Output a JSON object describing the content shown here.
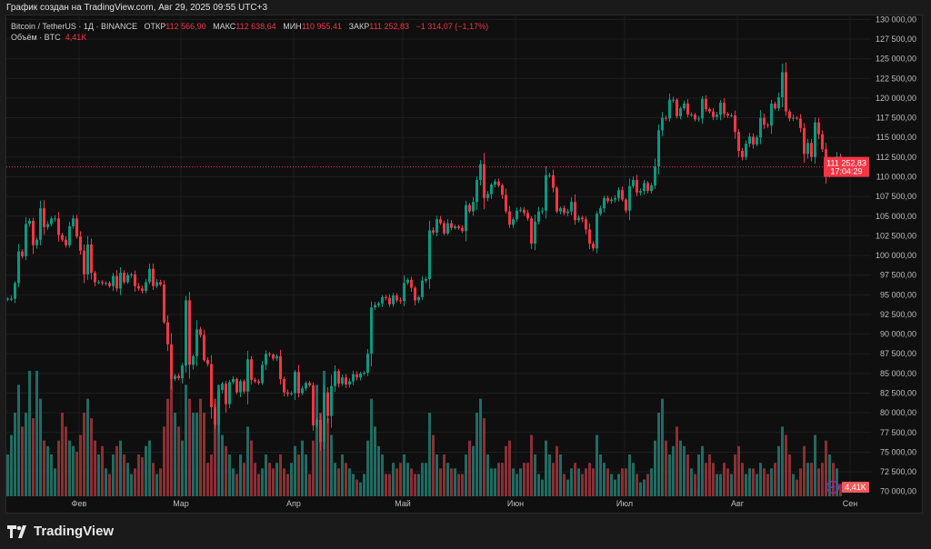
{
  "caption": "График создан на TradingView.com, Авг 29, 2025 09:55 UTC+3",
  "legend": {
    "symbol": "Bitcoin / TetherUS · 1Д · BINANCE",
    "open_label": "ОТКР",
    "open": "112 566,90",
    "high_label": "МАКС",
    "high": "112 638,64",
    "low_label": "МИН",
    "low": "110 955,41",
    "close_label": "ЗАКР",
    "close": "111 252,83",
    "change": "−1 314,07 (−1,17%)",
    "volume_label": "Объём · BTC",
    "volume": "4,41K"
  },
  "price_badge": {
    "price": "111 252,83",
    "countdown": "17:04:29"
  },
  "volume_badge": "4,41K",
  "footer": {
    "brand": "TradingView"
  },
  "colors": {
    "up": "#089981",
    "down": "#f23645",
    "up_vol": "#1f6b63",
    "down_vol": "#8c2f33"
  },
  "chart_data": {
    "type": "candlestick",
    "start_date": "2025-01-12",
    "interval": "1D",
    "ylim": [
      70000,
      130000
    ],
    "price_ticks": [
      "130 000,00",
      "127 500,00",
      "125 000,00",
      "122 500,00",
      "120 000,00",
      "117 500,00",
      "115 000,00",
      "112 500,00",
      "110 000,00",
      "107 500,00",
      "105 000,00",
      "102 500,00",
      "100 000,00",
      "97 500,00",
      "95 000,00",
      "92 500,00",
      "90 000,00",
      "87 500,00",
      "85 000,00",
      "82 500,00",
      "80 000,00",
      "77 500,00",
      "75 000,00",
      "72 500,00",
      "70 000,00"
    ],
    "price_tick_values": [
      130000,
      127500,
      125000,
      122500,
      120000,
      117500,
      115000,
      112500,
      110000,
      107500,
      105000,
      102500,
      100000,
      97500,
      95000,
      92500,
      90000,
      87500,
      85000,
      82500,
      80000,
      77500,
      75000,
      72500,
      70000
    ],
    "months": [
      {
        "label": "Фев",
        "day_index": 20
      },
      {
        "label": "Мар",
        "day_index": 48
      },
      {
        "label": "Апр",
        "day_index": 79
      },
      {
        "label": "Май",
        "day_index": 109
      },
      {
        "label": "Июн",
        "day_index": 140
      },
      {
        "label": "Июл",
        "day_index": 170
      },
      {
        "label": "Авг",
        "day_index": 201
      },
      {
        "label": "Сен",
        "day_index": 232
      }
    ],
    "first_open": 94500,
    "closes": [
      94500,
      94500,
      96500,
      100500,
      99900,
      104000,
      104400,
      101300,
      102000,
      106000,
      103600,
      104000,
      104700,
      104700,
      102600,
      102000,
      101300,
      103700,
      104700,
      102400,
      100600,
      97600,
      101400,
      97800,
      96600,
      96600,
      96500,
      96500,
      96100,
      97400,
      95800,
      97800,
      96600,
      97500,
      97600,
      96100,
      95800,
      95500,
      96600,
      98300,
      96100,
      96600,
      96300,
      91500,
      88700,
      84300,
      84700,
      84400,
      86000,
      94300,
      86100,
      87200,
      90600,
      89900,
      86700,
      86200,
      80700,
      78500,
      82900,
      83700,
      81100,
      83900,
      84300,
      82600,
      84000,
      82700,
      86800,
      84200,
      84000,
      83800,
      86100,
      87500,
      87400,
      86900,
      87200,
      84300,
      82600,
      82400,
      82500,
      85200,
      82500,
      83100,
      83800,
      83500,
      78400,
      79100,
      76300,
      82600,
      79600,
      83400,
      85300,
      83700,
      84500,
      83600,
      84000,
      84900,
      84500,
      85000,
      85100,
      87500,
      93400,
      93700,
      93900,
      94700,
      94600,
      93800,
      94900,
      94300,
      94200,
      96500,
      96900,
      95900,
      94300,
      94700,
      96800,
      97000,
      103200,
      102900,
      104600,
      104100,
      102800,
      104100,
      103500,
      103700,
      103500,
      103100,
      106400,
      105600,
      106800,
      109600,
      111600,
      107300,
      107800,
      109000,
      109400,
      108900,
      107700,
      105600,
      103900,
      104600,
      105700,
      105800,
      105400,
      104700,
      101500,
      104300,
      105600,
      105700,
      110200,
      110200,
      108600,
      105600,
      106000,
      105400,
      105600,
      106800,
      104500,
      104800,
      104600,
      103300,
      101500,
      100900,
      105300,
      106000,
      107300,
      106900,
      107100,
      107300,
      108300,
      107100,
      105700,
      108800,
      109600,
      108000,
      108200,
      109200,
      108200,
      108900,
      111300,
      115900,
      117500,
      117400,
      119800,
      119800,
      117700,
      118700,
      119300,
      117900,
      117900,
      117300,
      117400,
      119900,
      118600,
      118300,
      117600,
      117900,
      119400,
      118000,
      117800,
      117800,
      115700,
      113300,
      112500,
      114200,
      115100,
      114100,
      115000,
      117500,
      116600,
      116500,
      119300,
      118700,
      120100,
      123300,
      118300,
      117400,
      117500,
      117400,
      116200,
      112900,
      114300,
      112500,
      116900,
      115400,
      113500,
      110100,
      111800,
      111300,
      112566.9,
      111252.83
    ],
    "volumes_k": [
      15,
      22,
      30,
      40,
      25,
      30,
      45,
      28,
      45,
      35,
      20,
      18,
      15,
      10,
      20,
      30,
      25,
      20,
      18,
      16,
      22,
      30,
      35,
      28,
      20,
      15,
      18,
      10,
      8,
      15,
      18,
      20,
      15,
      12,
      8,
      10,
      15,
      14,
      18,
      20,
      12,
      8,
      10,
      25,
      35,
      45,
      30,
      25,
      20,
      40,
      35,
      30,
      30,
      35,
      30,
      12,
      15,
      35,
      40,
      22,
      18,
      15,
      10,
      8,
      15,
      12,
      25,
      20,
      12,
      8,
      10,
      15,
      12,
      10,
      12,
      15,
      10,
      8,
      12,
      18,
      15,
      20,
      15,
      8,
      20,
      40,
      30,
      45,
      28,
      22,
      12,
      10,
      15,
      12,
      10,
      8,
      6,
      5,
      8,
      20,
      35,
      25,
      18,
      15,
      8,
      8,
      12,
      10,
      12,
      15,
      12,
      10,
      8,
      8,
      12,
      12,
      30,
      22,
      15,
      10,
      15,
      12,
      10,
      10,
      8,
      8,
      15,
      20,
      18,
      30,
      35,
      28,
      15,
      10,
      10,
      12,
      12,
      18,
      20,
      10,
      8,
      10,
      12,
      12,
      22,
      15,
      8,
      6,
      20,
      15,
      12,
      18,
      15,
      8,
      6,
      10,
      12,
      10,
      8,
      10,
      12,
      10,
      22,
      15,
      12,
      10,
      8,
      6,
      8,
      10,
      10,
      15,
      12,
      8,
      5,
      6,
      8,
      10,
      20,
      30,
      35,
      20,
      15,
      18,
      25,
      20,
      18,
      15,
      10,
      8,
      15,
      18,
      12,
      15,
      12,
      8,
      8,
      12,
      10,
      8,
      15,
      18,
      12,
      8,
      10,
      10,
      8,
      12,
      10,
      8,
      10,
      12,
      18,
      25,
      22,
      15,
      8,
      6,
      10,
      18,
      12,
      12,
      22,
      10,
      12,
      20,
      15,
      12,
      10,
      4.41
    ]
  }
}
